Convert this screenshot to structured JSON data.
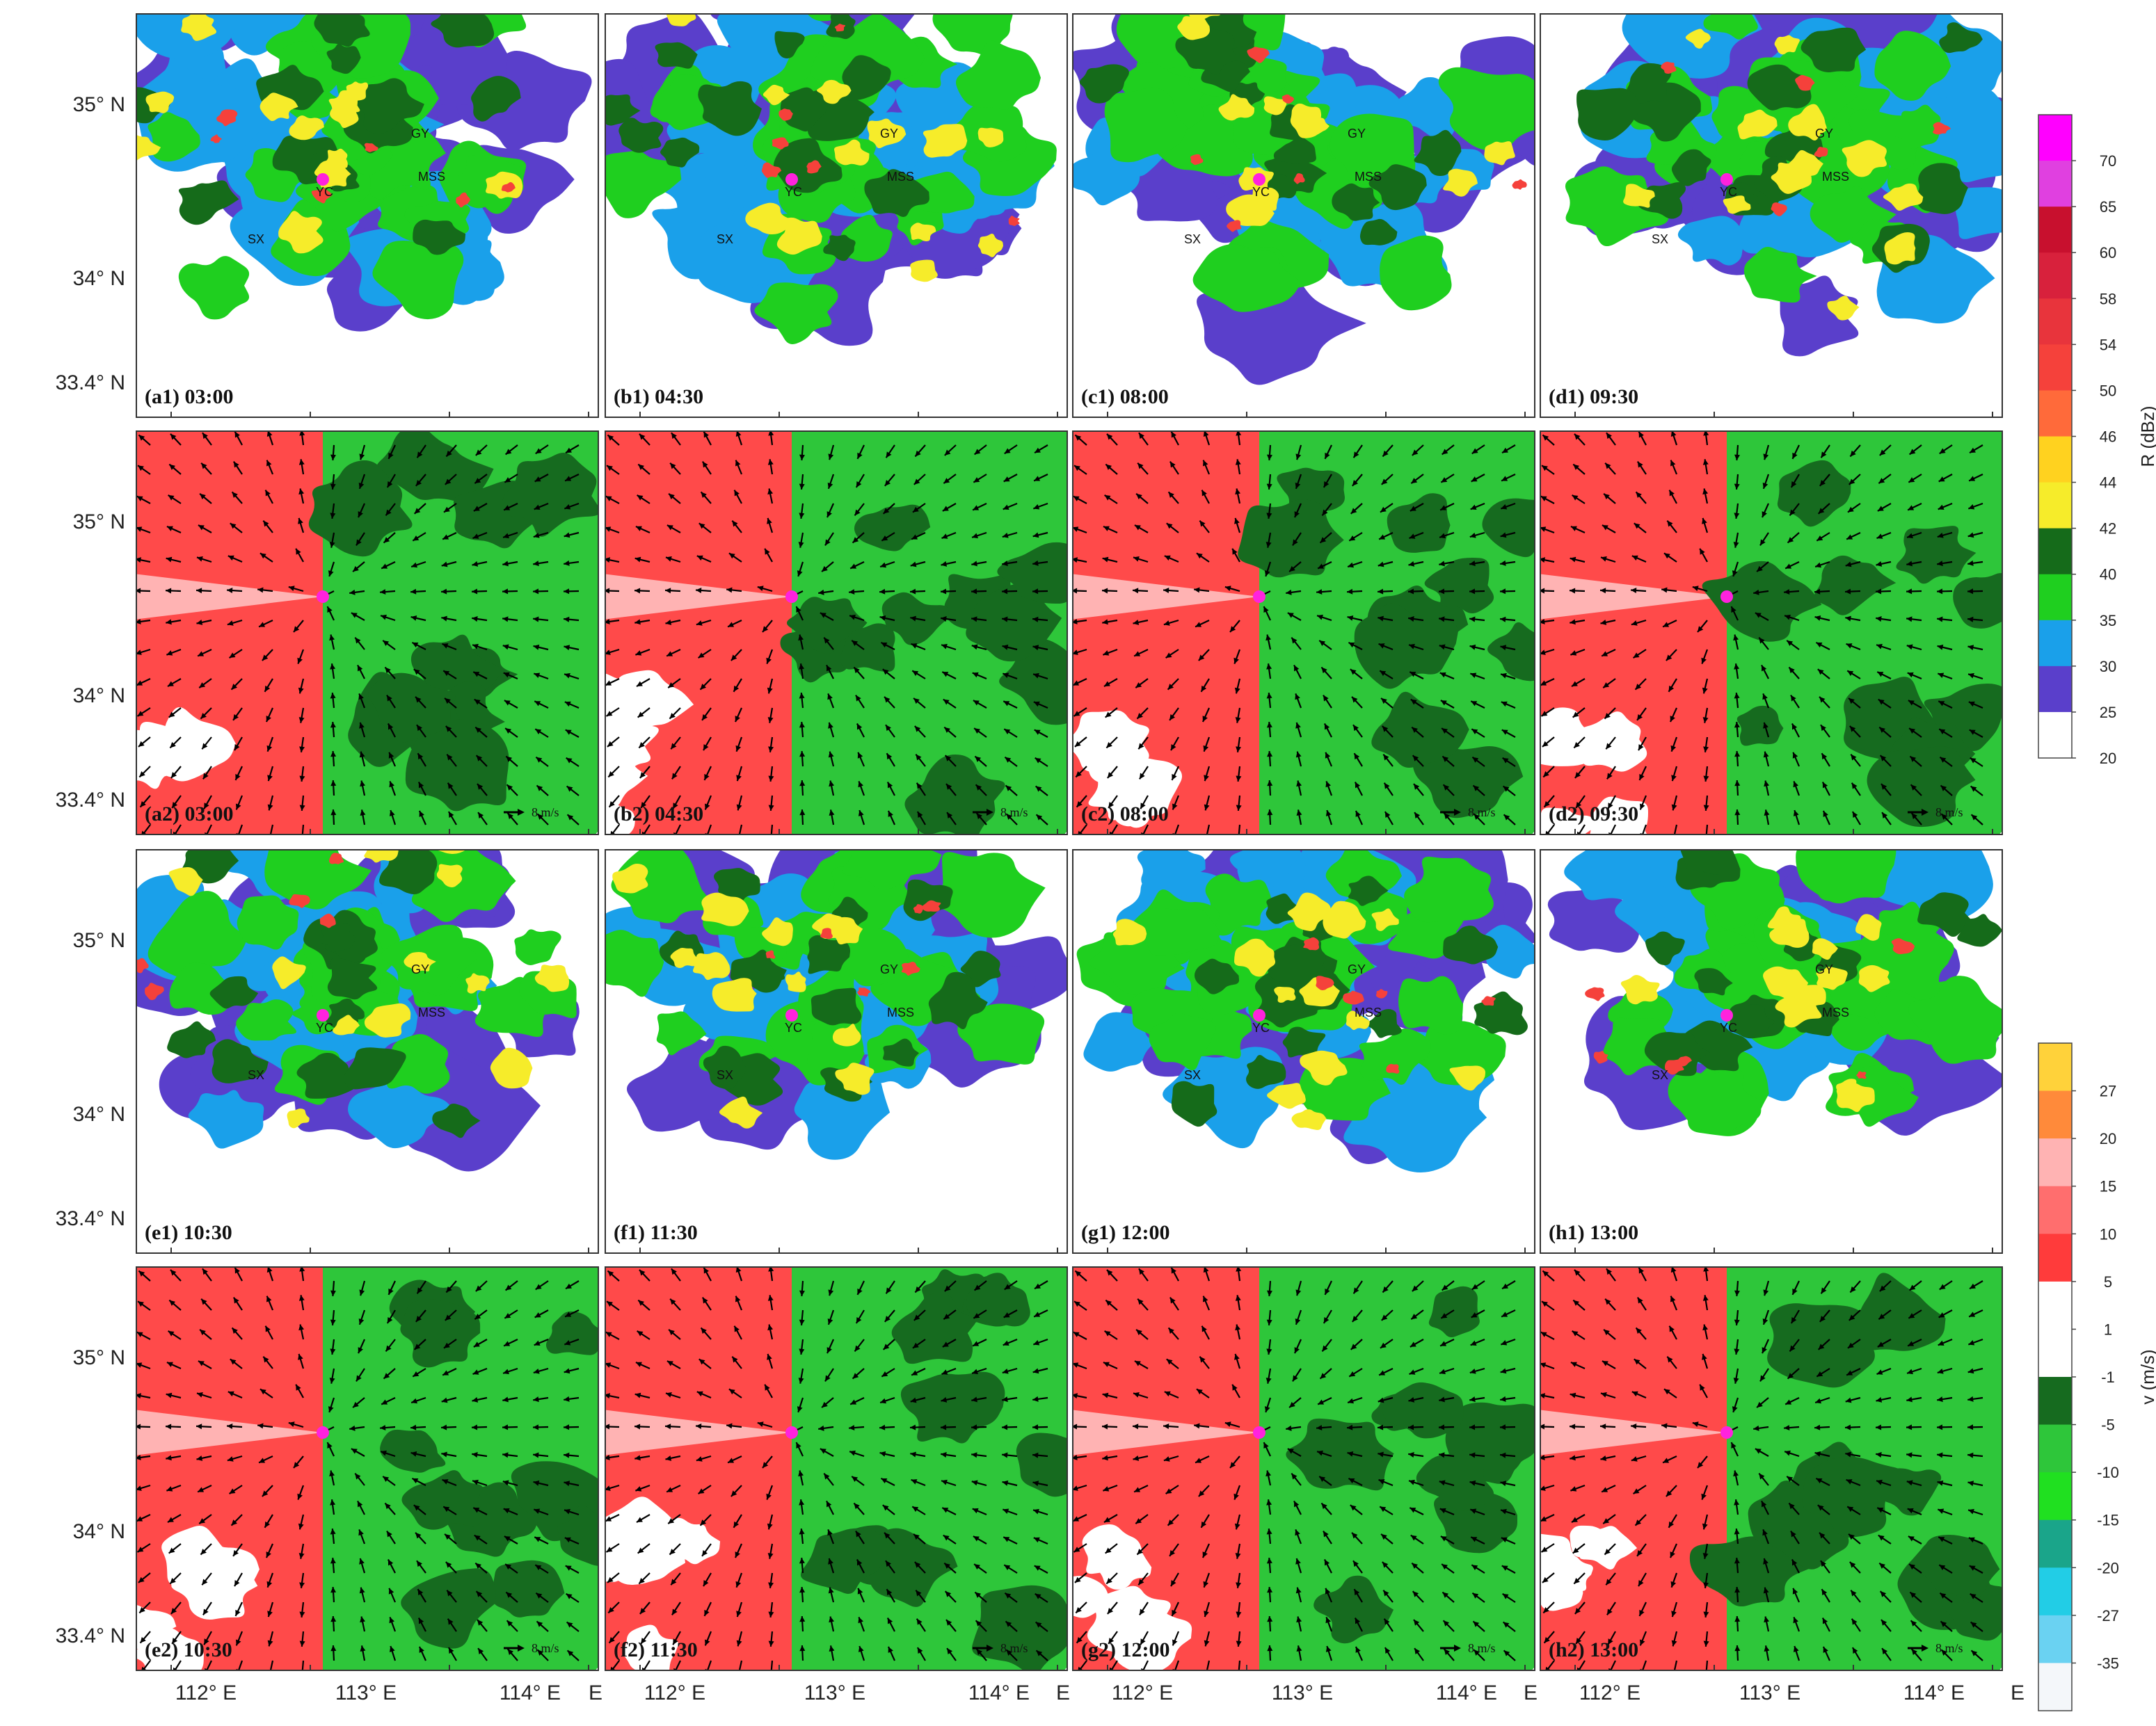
{
  "map": {
    "panels": [
      {
        "id": "a1",
        "type": "reflectivity",
        "label": "(a1) 03:00",
        "time": "03:00",
        "sites": [
          "GY",
          "MSS",
          "YC",
          "SX"
        ]
      },
      {
        "id": "b1",
        "type": "reflectivity",
        "label": "(b1) 04:30",
        "time": "04:30",
        "sites": [
          "GY",
          "MSS",
          "YC",
          "SX"
        ]
      },
      {
        "id": "c1",
        "type": "reflectivity",
        "label": "(c1) 08:00",
        "time": "08:00",
        "sites": [
          "GY",
          "MSS",
          "YC",
          "SX"
        ]
      },
      {
        "id": "d1",
        "type": "reflectivity",
        "label": "(d1) 09:30",
        "time": "09:30",
        "sites": [
          "GY",
          "MSS",
          "YC",
          "SX"
        ]
      },
      {
        "id": "a2",
        "type": "velocity",
        "label": "(a2) 03:00",
        "time": "03:00",
        "scale": "8 m/s"
      },
      {
        "id": "b2",
        "type": "velocity",
        "label": "(b2) 04:30",
        "time": "04:30",
        "scale": "8 m/s"
      },
      {
        "id": "c2",
        "type": "velocity",
        "label": "(c2) 08:00",
        "time": "08:00",
        "scale": "8 m/s"
      },
      {
        "id": "d2",
        "type": "velocity",
        "label": "(d2) 09:30",
        "time": "09:30",
        "scale": "8 m/s"
      },
      {
        "id": "e1",
        "type": "reflectivity",
        "label": "(e1) 10:30",
        "time": "10:30",
        "sites": [
          "GY",
          "MSS",
          "YC",
          "SX"
        ]
      },
      {
        "id": "f1",
        "type": "reflectivity",
        "label": "(f1) 11:30",
        "time": "11:30",
        "sites": [
          "GY",
          "MSS",
          "YC",
          "SX"
        ]
      },
      {
        "id": "g1",
        "type": "reflectivity",
        "label": "(g1) 12:00",
        "time": "12:00",
        "sites": [
          "GY",
          "MSS",
          "YC",
          "SX"
        ]
      },
      {
        "id": "h1",
        "type": "reflectivity",
        "label": "(h1) 13:00",
        "time": "13:00",
        "sites": [
          "GY",
          "MSS",
          "YC",
          "SX"
        ]
      },
      {
        "id": "e2",
        "type": "velocity",
        "label": "(e2) 10:30",
        "time": "10:30",
        "scale": "8 m/s"
      },
      {
        "id": "f2",
        "type": "velocity",
        "label": "(f2) 11:30",
        "time": "11:30",
        "scale": "8 m/s"
      },
      {
        "id": "g2",
        "type": "velocity",
        "label": "(g2) 12:00",
        "time": "12:00",
        "scale": "8 m/s"
      },
      {
        "id": "h2",
        "type": "velocity",
        "label": "(h2) 13:00",
        "time": "13:00",
        "scale": "8 m/s"
      }
    ],
    "lat_labels": [
      "35° N",
      "34° N",
      "33.4° N"
    ],
    "lon_labels": [
      "112° E",
      "113° E",
      "114° E"
    ],
    "lon_edge_label": "E",
    "reflectivity_colorbar": {
      "title": "R (dBz)",
      "ticks": [
        "70",
        "65",
        "60",
        "58",
        "54",
        "50",
        "46",
        "44",
        "42",
        "40",
        "35",
        "30",
        "25",
        "20"
      ],
      "colors": [
        "#ff00ff",
        "#e040e0",
        "#c8102e",
        "#d8213c",
        "#e8343c",
        "#f5413b",
        "#ff6a3a",
        "#ffd21f",
        "#f6ec2a",
        "#156b1a",
        "#1fcf1f",
        "#1aa0ea",
        "#5a3fcb",
        "#ffffff"
      ]
    },
    "velocity_colorbar": {
      "title": "v (m/s)",
      "ticks": [
        "27",
        "20",
        "15",
        "10",
        "5",
        "1",
        "-1",
        "-5",
        "-10",
        "-15",
        "-20",
        "-27",
        "-35"
      ],
      "colors": [
        "#ffd23a",
        "#ff8a3a",
        "#ffb3b3",
        "#ff6e6e",
        "#ff3b3b",
        "#ffffff",
        "#ffffff",
        "#166b1f",
        "#2ec63a",
        "#20e020",
        "#1aa58a",
        "#22cde6",
        "#6ad2f2",
        "#f4f7fa"
      ]
    },
    "colors": {
      "radar_site": "#ff22dd",
      "refl_blue": "#1aa0ea",
      "refl_purple": "#5a3fcb",
      "refl_green": "#1fcf1f",
      "refl_dgreen": "#156b1a",
      "refl_yellow": "#f6ec2a",
      "refl_red": "#f5413b",
      "vel_green": "#2ec63a",
      "vel_dgreen": "#166b1f",
      "vel_red": "#ff4a4a",
      "vel_pink": "#ffb3b3"
    }
  }
}
